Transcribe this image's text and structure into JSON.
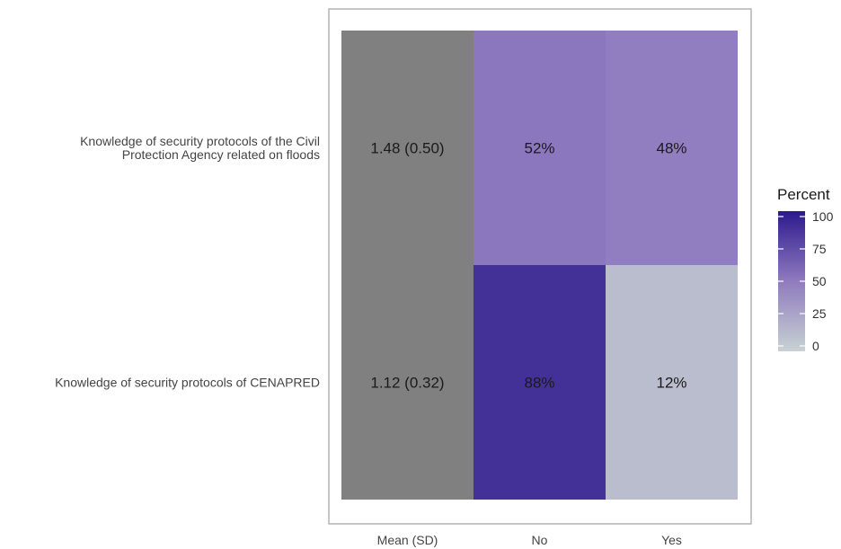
{
  "chart_data": {
    "type": "heatmap",
    "rows": [
      [
        "Knowledge of security protocols of the Civil",
        "Protection Agency related on floods"
      ],
      [
        "Knowledge of security protocols of CENAPRED"
      ]
    ],
    "columns": [
      "Mean (SD)",
      "No",
      "Yes"
    ],
    "cells": [
      [
        {
          "label": "1.48 (0.50)",
          "value": null
        },
        {
          "label": "52%",
          "value": 52
        },
        {
          "label": "48%",
          "value": 48
        }
      ],
      [
        {
          "label": "1.12 (0.32)",
          "value": null
        },
        {
          "label": "88%",
          "value": 88
        },
        {
          "label": "12%",
          "value": 12
        }
      ]
    ],
    "mean_cell_color": "#808080",
    "legend": {
      "title": "Percent",
      "ticks": [
        100,
        75,
        50,
        25,
        0
      ],
      "range": [
        0,
        100
      ],
      "colors": {
        "low": "#c8d2d2",
        "mid": "#8f7bbf",
        "high": "#2c1a8c"
      }
    },
    "frame_color": "#b3b3b3"
  }
}
